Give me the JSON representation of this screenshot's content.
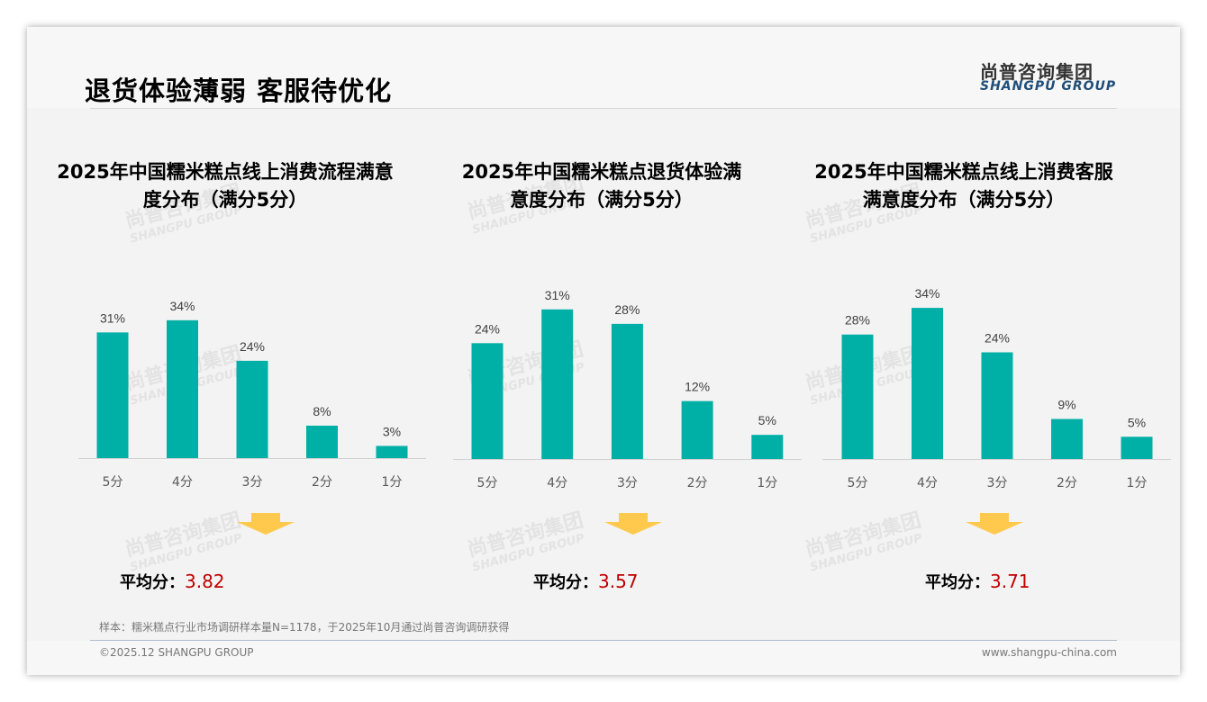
{
  "header": {
    "title": "退货体验薄弱 客服待优化",
    "logo_cn": "尚普咨询集团",
    "logo_en": "SHANGPU GROUP"
  },
  "colors": {
    "bar": "#00b0a6",
    "arrow": "#ffc94d",
    "avg_value": "#c00000"
  },
  "avg_label": "平均分：",
  "chart_data": [
    {
      "type": "bar",
      "title": "2025年中国糯米糕点线上消费流程满意度分布（满分5分）",
      "title_lines": [
        "2025年中国糯米糕点线上消费流程满意",
        "度分布（满分5分）"
      ],
      "categories": [
        "5分",
        "4分",
        "3分",
        "2分",
        "1分"
      ],
      "values": [
        31,
        34,
        24,
        8,
        3
      ],
      "labels": [
        "31%",
        "34%",
        "24%",
        "8%",
        "3%"
      ],
      "ylim": [
        0,
        44.4
      ],
      "average": "3.82"
    },
    {
      "type": "bar",
      "title": "2025年中国糯米糕点退货体验满意度分布（满分5分）",
      "title_lines": [
        "2025年中国糯米糕点退货体验满",
        "意度分布（满分5分）"
      ],
      "categories": [
        "5分",
        "4分",
        "3分",
        "2分",
        "1分"
      ],
      "values": [
        24,
        31,
        28,
        12,
        5
      ],
      "labels": [
        "24%",
        "31%",
        "28%",
        "12%",
        "5%"
      ],
      "ylim": [
        0,
        37.3
      ],
      "average": "3.57"
    },
    {
      "type": "bar",
      "title": "2025年中国糯米糕点线上消费客服满意度分布（满分5分）",
      "title_lines": [
        "2025年中国糯米糕点线上消费客服",
        "满意度分布（满分5分）"
      ],
      "categories": [
        "5分",
        "4分",
        "3分",
        "2分",
        "1分"
      ],
      "values": [
        28,
        34,
        24,
        9,
        5
      ],
      "labels": [
        "28%",
        "34%",
        "24%",
        "9%",
        "5%"
      ],
      "ylim": [
        0,
        40.5
      ],
      "average": "3.71"
    }
  ],
  "footer": {
    "note": "样本：糯米糕点行业市场调研样本量N=1178，于2025年10月通过尚普咨询调研获得",
    "copyright": "©2025.12 SHANGPU GROUP",
    "website": "www.shangpu-china.com"
  }
}
